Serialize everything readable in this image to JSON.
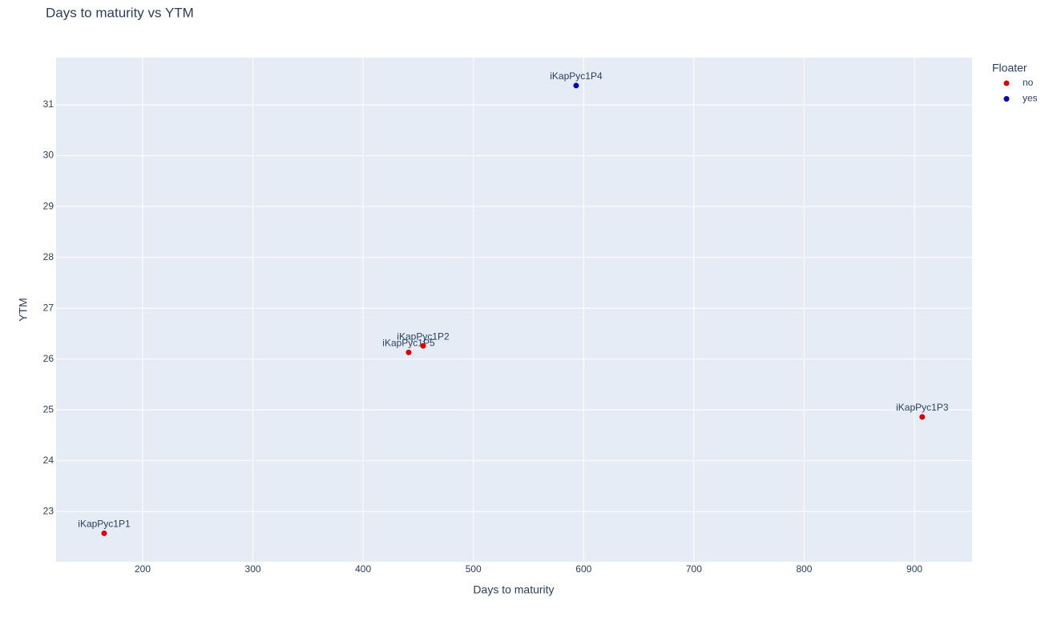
{
  "chart_data": {
    "type": "scatter",
    "title": "Days to maturity vs YTM",
    "x_label": "Days to maturity",
    "y_label": "YTM",
    "legend_title": "Floater",
    "series": [
      {
        "name": "no",
        "color": "#e00000",
        "x": [
          165.1,
          441.3,
          454.4,
          907.1
        ],
        "y": [
          22.57,
          26.13,
          26.26,
          24.86
        ],
        "text": [
          "iKapPyc1P1",
          "iKapPyc1P5",
          "iKapPyc1P2",
          "iKapPyc1P3"
        ]
      },
      {
        "name": "yes",
        "color": "#0000c0",
        "x": [
          593.2
        ],
        "y": [
          31.38
        ],
        "text": [
          "iKapPyc1P4"
        ]
      }
    ],
    "xlim": [
      121.5,
      952.3
    ],
    "ylim": [
      22.01,
      31.93
    ],
    "xticks": [
      200,
      300,
      400,
      500,
      600,
      700,
      800,
      900
    ],
    "yticks": [
      23,
      24,
      25,
      26,
      27,
      28,
      29,
      30,
      31
    ],
    "grid": true
  }
}
